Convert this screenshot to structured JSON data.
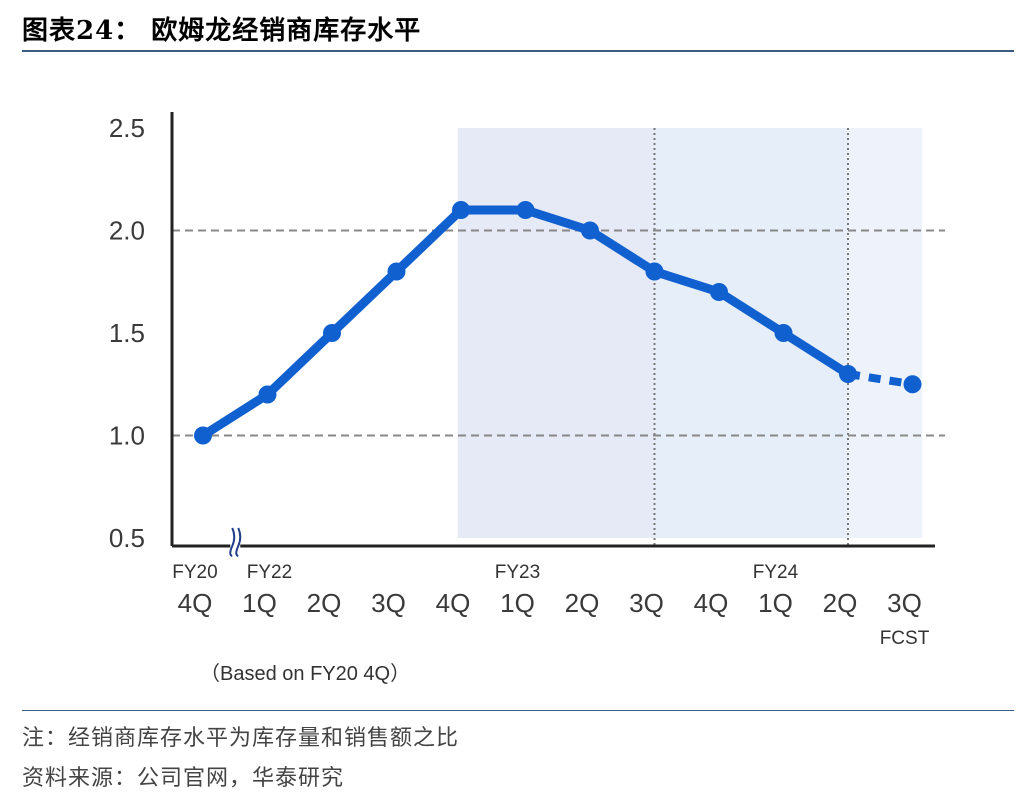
{
  "header": {
    "title": "图表24：  欧姆龙经销商库存水平"
  },
  "footer": {
    "note": "注：经销商库存水平为库存量和销售额之比",
    "source": "资料来源：公司官网，华泰研究"
  },
  "chart_data": {
    "type": "line",
    "title": "",
    "xlabel": "",
    "ylabel": "",
    "ylim": [
      0.5,
      2.5
    ],
    "yticks": [
      "0.5",
      "1.0",
      "1.5",
      "2.0",
      "2.5"
    ],
    "categories": [
      "4Q",
      "1Q",
      "2Q",
      "3Q",
      "4Q",
      "1Q",
      "2Q",
      "3Q",
      "4Q",
      "1Q",
      "2Q",
      "3Q"
    ],
    "group_labels": [
      {
        "label": "FY20",
        "at": 0
      },
      {
        "label": "FY22",
        "at": 1
      },
      {
        "label": "FY23",
        "at": 5
      },
      {
        "label": "FY24",
        "at": 9
      },
      {
        "label": "FCST",
        "at": 11
      }
    ],
    "series": [
      {
        "values": [
          1.0,
          1.2,
          1.5,
          1.8,
          2.1,
          2.1,
          2.0,
          1.8,
          1.7,
          1.5,
          1.3,
          1.25
        ]
      }
    ],
    "forecast_from_index": 10,
    "basis_note": "（Based on FY20 4Q）",
    "gridlines": [
      1.0,
      2.0
    ],
    "shaded_ranges": [
      {
        "from": 3.95,
        "to": 7.0,
        "color": "#e6e9f6"
      },
      {
        "from": 7.0,
        "to": 10.0,
        "color": "#e5eef9"
      },
      {
        "from": 10.0,
        "to": 11.15,
        "color": "#eef3fb"
      }
    ],
    "line_color": "#1060d0",
    "axis_break_after_index": 0
  }
}
